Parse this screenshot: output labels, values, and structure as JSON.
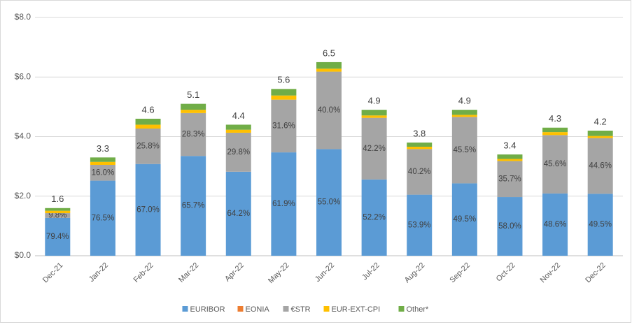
{
  "chart_data": {
    "type": "stacked_bar",
    "categories": [
      "Dec-21",
      "Jan-22",
      "Feb-22",
      "Mar-22",
      "Apr-22",
      "May-22",
      "Jun-22",
      "Jul-22",
      "Aug-22",
      "Sep-22",
      "Oct-22",
      "Nov-22",
      "Dec-22"
    ],
    "series": [
      {
        "name": "EURIBOR",
        "color": "#5b9bd5",
        "values": [
          1.27,
          2.52,
          3.08,
          3.35,
          2.82,
          3.47,
          3.58,
          2.56,
          2.05,
          2.43,
          1.97,
          2.09,
          2.08
        ],
        "share_labels": [
          "79.4%",
          "76.5%",
          "67.0%",
          "65.7%",
          "64.2%",
          "61.9%",
          "55.0%",
          "52.2%",
          "53.9%",
          "49.5%",
          "58.0%",
          "48.6%",
          "49.5%"
        ]
      },
      {
        "name": "EONIA",
        "color": "#ed7d31",
        "values": [
          0,
          0,
          0,
          0,
          0,
          0,
          0,
          0,
          0,
          0,
          0,
          0,
          0
        ]
      },
      {
        "name": "€STR",
        "color": "#a5a5a5",
        "values": [
          0.16,
          0.53,
          1.19,
          1.44,
          1.31,
          1.77,
          2.6,
          2.07,
          1.53,
          2.23,
          1.21,
          1.96,
          1.87
        ],
        "share_labels": [
          "9.8%",
          "16.0%",
          "25.8%",
          "28.3%",
          "29.8%",
          "31.6%",
          "40.0%",
          "42.2%",
          "40.2%",
          "45.5%",
          "35.7%",
          "45.6%",
          "44.6%"
        ]
      },
      {
        "name": "EUR-EXT-CPI",
        "color": "#ffc000",
        "values": [
          0.08,
          0.1,
          0.13,
          0.11,
          0.1,
          0.14,
          0.1,
          0.08,
          0.08,
          0.07,
          0.07,
          0.1,
          0.07
        ]
      },
      {
        "name": "Other*",
        "color": "#70ad47",
        "values": [
          0.09,
          0.15,
          0.2,
          0.2,
          0.17,
          0.22,
          0.22,
          0.19,
          0.14,
          0.17,
          0.15,
          0.15,
          0.18
        ]
      }
    ],
    "totals": [
      1.6,
      3.3,
      4.6,
      5.1,
      4.4,
      5.6,
      6.5,
      4.9,
      3.8,
      4.9,
      3.4,
      4.3,
      4.2
    ],
    "ylim": [
      0,
      8
    ],
    "yticks": [
      {
        "value": 0,
        "label": "$0.0"
      },
      {
        "value": 2,
        "label": "$2.0"
      },
      {
        "value": 4,
        "label": "$4.0"
      },
      {
        "value": 6,
        "label": "$6.0"
      },
      {
        "value": 8,
        "label": "$8.0"
      }
    ],
    "grid": true,
    "legend": "bottom"
  }
}
